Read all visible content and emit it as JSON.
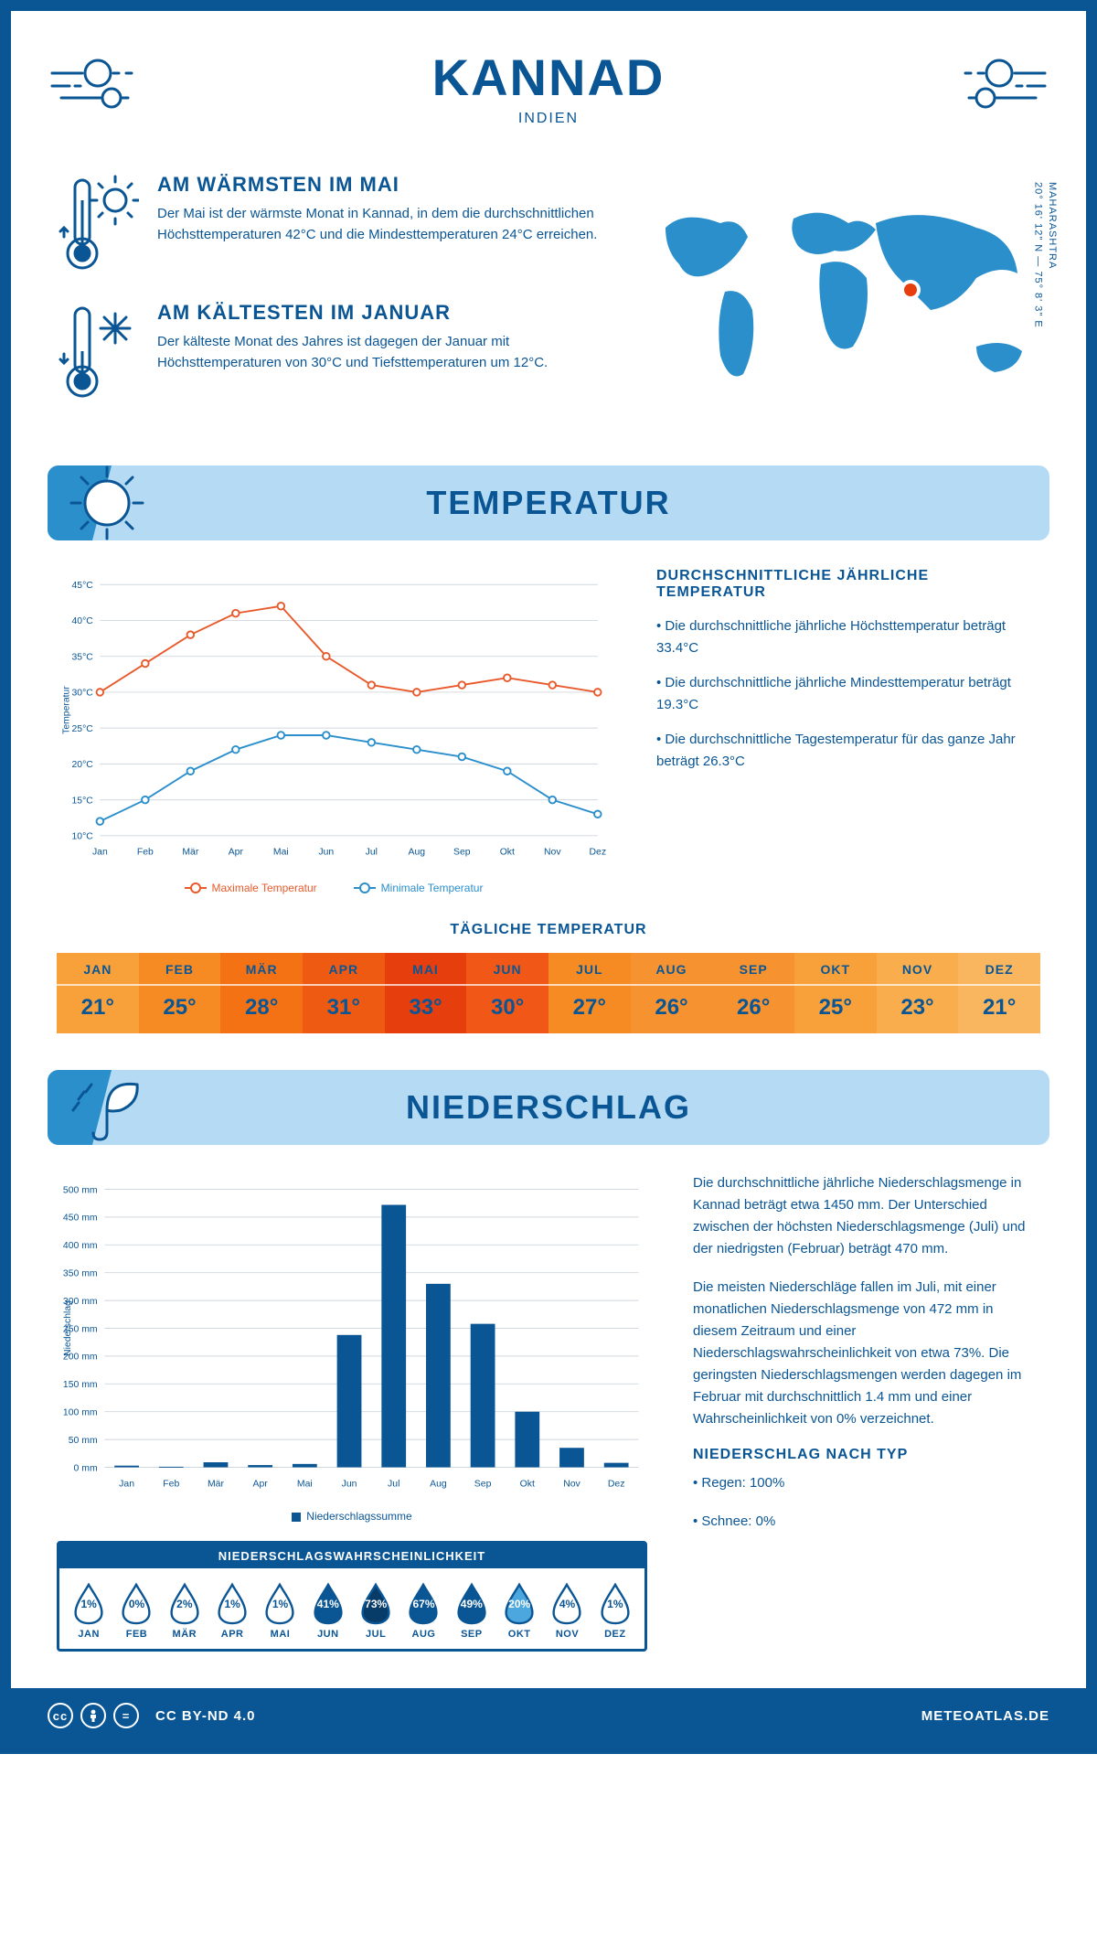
{
  "header": {
    "title": "KANNAD",
    "subtitle": "INDIEN"
  },
  "coords": {
    "lat": "20° 16' 12\" N — 75° 8' 3\" E",
    "region": "MAHARASHTRA"
  },
  "fact_warm": {
    "title": "AM WÄRMSTEN IM MAI",
    "text": "Der Mai ist der wärmste Monat in Kannad, in dem die durchschnittlichen Höchsttemperaturen 42°C und die Mindesttemperaturen 24°C erreichen."
  },
  "fact_cold": {
    "title": "AM KÄLTESTEN IM JANUAR",
    "text": "Der kälteste Monat des Jahres ist dagegen der Januar mit Höchsttemperaturen von 30°C und Tiefsttemperaturen um 12°C."
  },
  "temp_section": {
    "title": "TEMPERATUR",
    "chart": {
      "type": "line",
      "months": [
        "Jan",
        "Feb",
        "Mär",
        "Apr",
        "Mai",
        "Jun",
        "Jul",
        "Aug",
        "Sep",
        "Okt",
        "Nov",
        "Dez"
      ],
      "max_series": [
        30,
        34,
        38,
        41,
        42,
        35,
        31,
        30,
        31,
        32,
        31,
        30
      ],
      "min_series": [
        12,
        15,
        19,
        22,
        24,
        24,
        23,
        22,
        21,
        19,
        15,
        13
      ],
      "ylim": [
        10,
        45
      ],
      "ytick_step": 5,
      "ylabel": "Temperatur",
      "max_color": "#e85a2c",
      "min_color": "#2b8fcc",
      "grid_color": "#d0d7de",
      "background": "#ffffff",
      "line_width": 2,
      "marker_radius": 4,
      "legend_max": "Maximale Temperatur",
      "legend_min": "Minimale Temperatur"
    },
    "text_title": "DURCHSCHNITTLICHE JÄHRLICHE TEMPERATUR",
    "bullet1": "• Die durchschnittliche jährliche Höchsttemperatur beträgt 33.4°C",
    "bullet2": "• Die durchschnittliche jährliche Mindesttemperatur beträgt 19.3°C",
    "bullet3": "• Die durchschnittliche Tagestemperatur für das ganze Jahr beträgt 26.3°C",
    "daily_title": "TÄGLICHE TEMPERATUR",
    "daily": {
      "months": [
        "JAN",
        "FEB",
        "MÄR",
        "APR",
        "MAI",
        "JUN",
        "JUL",
        "AUG",
        "SEP",
        "OKT",
        "NOV",
        "DEZ"
      ],
      "values": [
        "21°",
        "25°",
        "28°",
        "31°",
        "33°",
        "30°",
        "27°",
        "26°",
        "26°",
        "25°",
        "23°",
        "21°"
      ],
      "bg_colors": [
        "#f8a03a",
        "#f68b24",
        "#f47214",
        "#ef5a13",
        "#e73e0e",
        "#f15716",
        "#f68b24",
        "#f79230",
        "#f79230",
        "#f8a03a",
        "#f9ad4c",
        "#fab65e"
      ],
      "text_color": "#0a5594"
    }
  },
  "precip_section": {
    "title": "NIEDERSCHLAG",
    "chart": {
      "type": "bar",
      "months": [
        "Jan",
        "Feb",
        "Mär",
        "Apr",
        "Mai",
        "Jun",
        "Jul",
        "Aug",
        "Sep",
        "Okt",
        "Nov",
        "Dez"
      ],
      "values": [
        3,
        1,
        9,
        4,
        6,
        238,
        472,
        330,
        258,
        100,
        35,
        8
      ],
      "ylim": [
        0,
        500
      ],
      "ytick_step": 50,
      "ylabel": "Niederschlag",
      "bar_color": "#0a5594",
      "grid_color": "#d0d7de",
      "legend": "Niederschlagssumme"
    },
    "para1": "Die durchschnittliche jährliche Niederschlagsmenge in Kannad beträgt etwa 1450 mm. Der Unterschied zwischen der höchsten Niederschlagsmenge (Juli) und der niedrigsten (Februar) beträgt 470 mm.",
    "para2": "Die meisten Niederschläge fallen im Juli, mit einer monatlichen Niederschlagsmenge von 472 mm in diesem Zeitraum und einer Niederschlagswahrscheinlichkeit von etwa 73%. Die geringsten Niederschlagsmengen werden dagegen im Februar mit durchschnittlich 1.4 mm und einer Wahrscheinlichkeit von 0% verzeichnet.",
    "type_title": "NIEDERSCHLAG NACH TYP",
    "type1": "• Regen: 100%",
    "type2": "• Schnee: 0%",
    "prob": {
      "title": "NIEDERSCHLAGSWAHRSCHEINLICHKEIT",
      "months": [
        "JAN",
        "FEB",
        "MÄR",
        "APR",
        "MAI",
        "JUN",
        "JUL",
        "AUG",
        "SEP",
        "OKT",
        "NOV",
        "DEZ"
      ],
      "values": [
        "1%",
        "0%",
        "2%",
        "1%",
        "1%",
        "41%",
        "73%",
        "67%",
        "49%",
        "20%",
        "4%",
        "1%"
      ],
      "filled": [
        false,
        false,
        false,
        false,
        false,
        true,
        true,
        true,
        true,
        true,
        false,
        false
      ],
      "fill_colors": [
        "",
        "",
        "",
        "",
        "",
        "#0a5594",
        "#073b68",
        "#0a5594",
        "#0a5594",
        "#4ba7dd",
        "",
        ""
      ],
      "outline_color": "#0a5594"
    }
  },
  "footer": {
    "license": "CC BY-ND 4.0",
    "site": "METEOATLAS.DE"
  },
  "colors": {
    "primary": "#0a5594",
    "banner_bg": "#b4daf4",
    "accent": "#2b8fcc",
    "marker": "#e73e0e"
  }
}
